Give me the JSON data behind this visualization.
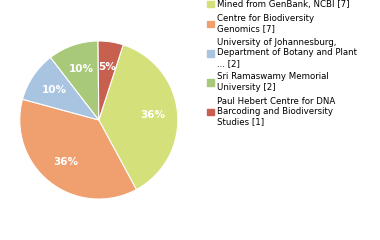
{
  "slices": [
    36,
    36,
    10,
    10,
    5
  ],
  "colors": [
    "#d4e07a",
    "#f0a06e",
    "#a8c4e0",
    "#a8c87a",
    "#c86050"
  ],
  "labels": [
    "Mined from GenBank, NCBI [7]",
    "Centre for Biodiversity\nGenomics [7]",
    "University of Johannesburg,\nDepartment of Botany and Plant\n... [2]",
    "Sri Ramaswamy Memorial\nUniversity [2]",
    "Paul Hebert Centre for DNA\nBarcoding and Biodiversity\nStudies [1]"
  ],
  "autopct_labels": [
    "36%",
    "36%",
    "10%",
    "10%",
    "5%"
  ],
  "startangle": 72,
  "legend_fontsize": 6.2,
  "autopct_fontsize": 7.5,
  "background_color": "#ffffff"
}
